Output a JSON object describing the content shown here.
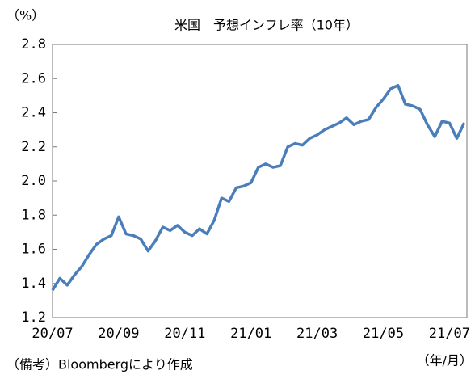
{
  "chart_data": {
    "type": "line",
    "title": "米国　予想インフレ率（10年）",
    "y_label": "（%）",
    "x_label": "（年/月）",
    "note": "（備考）Bloombergにより作成",
    "categories": [
      "20/07",
      null,
      null,
      null,
      null,
      null,
      null,
      null,
      null,
      "20/09",
      null,
      null,
      null,
      null,
      null,
      null,
      null,
      null,
      "20/11",
      null,
      null,
      null,
      null,
      null,
      null,
      null,
      null,
      "21/01",
      null,
      null,
      null,
      null,
      null,
      null,
      null,
      null,
      "21/03",
      null,
      null,
      null,
      null,
      null,
      null,
      null,
      null,
      "21/05",
      null,
      null,
      null,
      null,
      null,
      null,
      null,
      null,
      "21/07",
      null,
      null
    ],
    "series": [
      {
        "name": "予想インフレ率",
        "color": "#4a7ebb",
        "values": [
          1.36,
          1.43,
          1.39,
          1.45,
          1.5,
          1.57,
          1.63,
          1.66,
          1.68,
          1.79,
          1.69,
          1.68,
          1.66,
          1.59,
          1.65,
          1.73,
          1.71,
          1.74,
          1.7,
          1.68,
          1.72,
          1.69,
          1.77,
          1.9,
          1.88,
          1.96,
          1.97,
          1.99,
          2.08,
          2.1,
          2.08,
          2.09,
          2.2,
          2.22,
          2.21,
          2.25,
          2.27,
          2.3,
          2.32,
          2.34,
          2.37,
          2.33,
          2.35,
          2.36,
          2.43,
          2.48,
          2.54,
          2.56,
          2.45,
          2.44,
          2.42,
          2.33,
          2.26,
          2.35,
          2.34,
          2.25,
          2.34
        ]
      }
    ],
    "ylim": [
      1.2,
      2.8
    ],
    "yticks": [
      1.2,
      1.4,
      1.6,
      1.8,
      {
        "value": 2,
        "label": "2.0"
      },
      2.2,
      2.4,
      2.6,
      2.8
    ]
  }
}
